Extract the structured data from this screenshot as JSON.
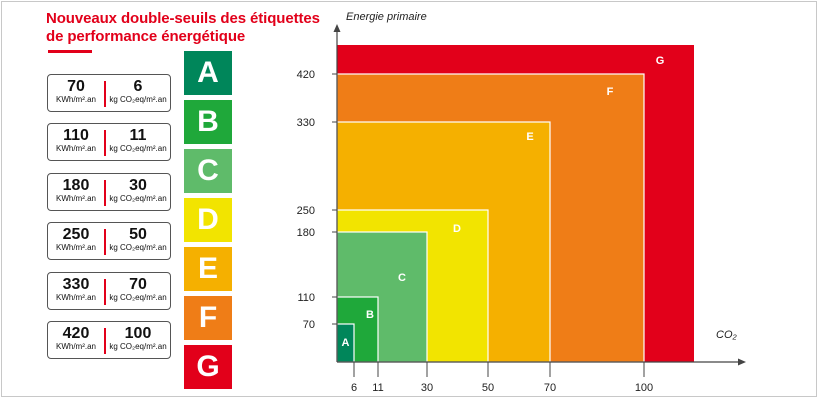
{
  "title": {
    "line1": "Nouveaux double-seuils des étiquettes",
    "line2": "de performance énergétique"
  },
  "thresholds": [
    {
      "energy": "70",
      "energy_unit": "KWh/m².an",
      "co2": "6",
      "co2_unit": "kg CO₂eq/m².an"
    },
    {
      "energy": "110",
      "energy_unit": "KWh/m².an",
      "co2": "11",
      "co2_unit": "kg CO₂eq/m².an"
    },
    {
      "energy": "180",
      "energy_unit": "KWh/m².an",
      "co2": "30",
      "co2_unit": "kg CO₂eq/m².an"
    },
    {
      "energy": "250",
      "energy_unit": "KWh/m².an",
      "co2": "50",
      "co2_unit": "kg CO₂eq/m².an"
    },
    {
      "energy": "330",
      "energy_unit": "KWh/m².an",
      "co2": "70",
      "co2_unit": "kg CO₂eq/m².an"
    },
    {
      "energy": "420",
      "energy_unit": "KWh/m².an",
      "co2": "100",
      "co2_unit": "kg CO₂eq/m².an"
    }
  ],
  "classes": [
    {
      "letter": "A",
      "color": "#00865a"
    },
    {
      "letter": "B",
      "color": "#1fa83a"
    },
    {
      "letter": "C",
      "color": "#5fbb6a"
    },
    {
      "letter": "D",
      "color": "#f2e400"
    },
    {
      "letter": "E",
      "color": "#f5b000"
    },
    {
      "letter": "F",
      "color": "#ef7d17"
    },
    {
      "letter": "G",
      "color": "#e2001a"
    }
  ],
  "chart": {
    "y_axis_label": "Energie primaire",
    "x_axis_label": "CO₂",
    "y_ticks": [
      "70",
      "110",
      "180",
      "250",
      "330",
      "420"
    ],
    "x_ticks": [
      "6",
      "11",
      "30",
      "50",
      "70",
      "100"
    ]
  },
  "chart_data": {
    "type": "nested-rectangles",
    "x_label": "CO₂",
    "y_label": "Energie primaire",
    "x_tick_values": [
      6,
      11,
      30,
      50,
      70,
      100
    ],
    "y_tick_values": [
      70,
      110,
      180,
      250,
      330,
      420
    ],
    "scale": "ordinal-steps",
    "regions": [
      {
        "label": "A",
        "co2_max": 6,
        "energy_max": 70
      },
      {
        "label": "B",
        "co2_max": 11,
        "energy_max": 110
      },
      {
        "label": "C",
        "co2_max": 30,
        "energy_max": 180
      },
      {
        "label": "D",
        "co2_max": 50,
        "energy_max": 250
      },
      {
        "label": "E",
        "co2_max": 70,
        "energy_max": 330
      },
      {
        "label": "F",
        "co2_max": 100,
        "energy_max": 420
      },
      {
        "label": "G",
        "co2_max": null,
        "energy_max": null
      }
    ],
    "grid": false,
    "legend": "none"
  }
}
